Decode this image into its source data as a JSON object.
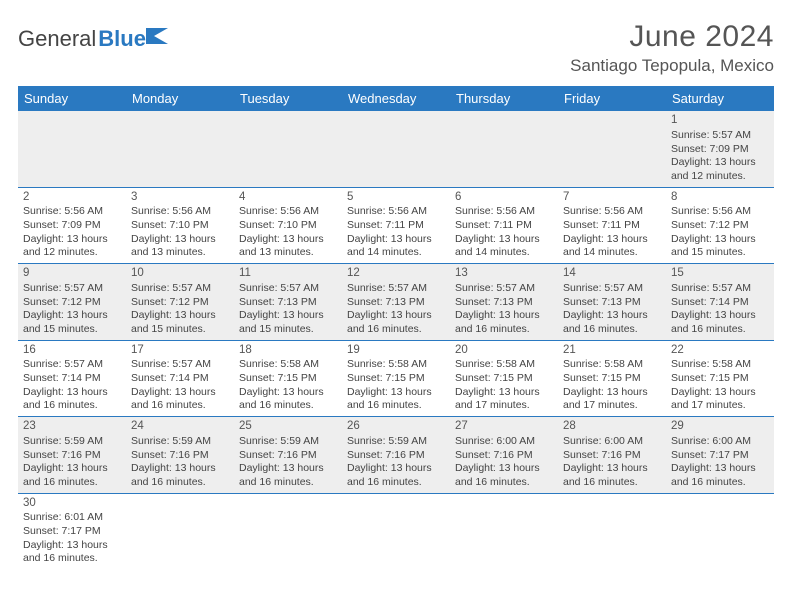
{
  "logo": {
    "text1": "General",
    "text2": "Blue"
  },
  "title": "June 2024",
  "location": "Santiago Tepopula, Mexico",
  "colors": {
    "header_bg": "#2a79c1",
    "header_text": "#ffffff",
    "alt_row_bg": "#eeeeee",
    "row_bg": "#ffffff",
    "border": "#2a79c1",
    "text": "#444444"
  },
  "day_headers": [
    "Sunday",
    "Monday",
    "Tuesday",
    "Wednesday",
    "Thursday",
    "Friday",
    "Saturday"
  ],
  "weeks": [
    {
      "alt": true,
      "days": [
        null,
        null,
        null,
        null,
        null,
        null,
        {
          "n": "1",
          "sr": "5:57 AM",
          "ss": "7:09 PM",
          "dl": "13 hours and 12 minutes."
        }
      ]
    },
    {
      "alt": false,
      "days": [
        {
          "n": "2",
          "sr": "5:56 AM",
          "ss": "7:09 PM",
          "dl": "13 hours and 12 minutes."
        },
        {
          "n": "3",
          "sr": "5:56 AM",
          "ss": "7:10 PM",
          "dl": "13 hours and 13 minutes."
        },
        {
          "n": "4",
          "sr": "5:56 AM",
          "ss": "7:10 PM",
          "dl": "13 hours and 13 minutes."
        },
        {
          "n": "5",
          "sr": "5:56 AM",
          "ss": "7:11 PM",
          "dl": "13 hours and 14 minutes."
        },
        {
          "n": "6",
          "sr": "5:56 AM",
          "ss": "7:11 PM",
          "dl": "13 hours and 14 minutes."
        },
        {
          "n": "7",
          "sr": "5:56 AM",
          "ss": "7:11 PM",
          "dl": "13 hours and 14 minutes."
        },
        {
          "n": "8",
          "sr": "5:56 AM",
          "ss": "7:12 PM",
          "dl": "13 hours and 15 minutes."
        }
      ]
    },
    {
      "alt": true,
      "days": [
        {
          "n": "9",
          "sr": "5:57 AM",
          "ss": "7:12 PM",
          "dl": "13 hours and 15 minutes."
        },
        {
          "n": "10",
          "sr": "5:57 AM",
          "ss": "7:12 PM",
          "dl": "13 hours and 15 minutes."
        },
        {
          "n": "11",
          "sr": "5:57 AM",
          "ss": "7:13 PM",
          "dl": "13 hours and 15 minutes."
        },
        {
          "n": "12",
          "sr": "5:57 AM",
          "ss": "7:13 PM",
          "dl": "13 hours and 16 minutes."
        },
        {
          "n": "13",
          "sr": "5:57 AM",
          "ss": "7:13 PM",
          "dl": "13 hours and 16 minutes."
        },
        {
          "n": "14",
          "sr": "5:57 AM",
          "ss": "7:13 PM",
          "dl": "13 hours and 16 minutes."
        },
        {
          "n": "15",
          "sr": "5:57 AM",
          "ss": "7:14 PM",
          "dl": "13 hours and 16 minutes."
        }
      ]
    },
    {
      "alt": false,
      "days": [
        {
          "n": "16",
          "sr": "5:57 AM",
          "ss": "7:14 PM",
          "dl": "13 hours and 16 minutes."
        },
        {
          "n": "17",
          "sr": "5:57 AM",
          "ss": "7:14 PM",
          "dl": "13 hours and 16 minutes."
        },
        {
          "n": "18",
          "sr": "5:58 AM",
          "ss": "7:15 PM",
          "dl": "13 hours and 16 minutes."
        },
        {
          "n": "19",
          "sr": "5:58 AM",
          "ss": "7:15 PM",
          "dl": "13 hours and 16 minutes."
        },
        {
          "n": "20",
          "sr": "5:58 AM",
          "ss": "7:15 PM",
          "dl": "13 hours and 17 minutes."
        },
        {
          "n": "21",
          "sr": "5:58 AM",
          "ss": "7:15 PM",
          "dl": "13 hours and 17 minutes."
        },
        {
          "n": "22",
          "sr": "5:58 AM",
          "ss": "7:15 PM",
          "dl": "13 hours and 17 minutes."
        }
      ]
    },
    {
      "alt": true,
      "days": [
        {
          "n": "23",
          "sr": "5:59 AM",
          "ss": "7:16 PM",
          "dl": "13 hours and 16 minutes."
        },
        {
          "n": "24",
          "sr": "5:59 AM",
          "ss": "7:16 PM",
          "dl": "13 hours and 16 minutes."
        },
        {
          "n": "25",
          "sr": "5:59 AM",
          "ss": "7:16 PM",
          "dl": "13 hours and 16 minutes."
        },
        {
          "n": "26",
          "sr": "5:59 AM",
          "ss": "7:16 PM",
          "dl": "13 hours and 16 minutes."
        },
        {
          "n": "27",
          "sr": "6:00 AM",
          "ss": "7:16 PM",
          "dl": "13 hours and 16 minutes."
        },
        {
          "n": "28",
          "sr": "6:00 AM",
          "ss": "7:16 PM",
          "dl": "13 hours and 16 minutes."
        },
        {
          "n": "29",
          "sr": "6:00 AM",
          "ss": "7:17 PM",
          "dl": "13 hours and 16 minutes."
        }
      ]
    },
    {
      "alt": false,
      "last": true,
      "days": [
        {
          "n": "30",
          "sr": "6:01 AM",
          "ss": "7:17 PM",
          "dl": "13 hours and 16 minutes."
        },
        null,
        null,
        null,
        null,
        null,
        null
      ]
    }
  ],
  "labels": {
    "sunrise": "Sunrise:",
    "sunset": "Sunset:",
    "daylight": "Daylight:"
  }
}
